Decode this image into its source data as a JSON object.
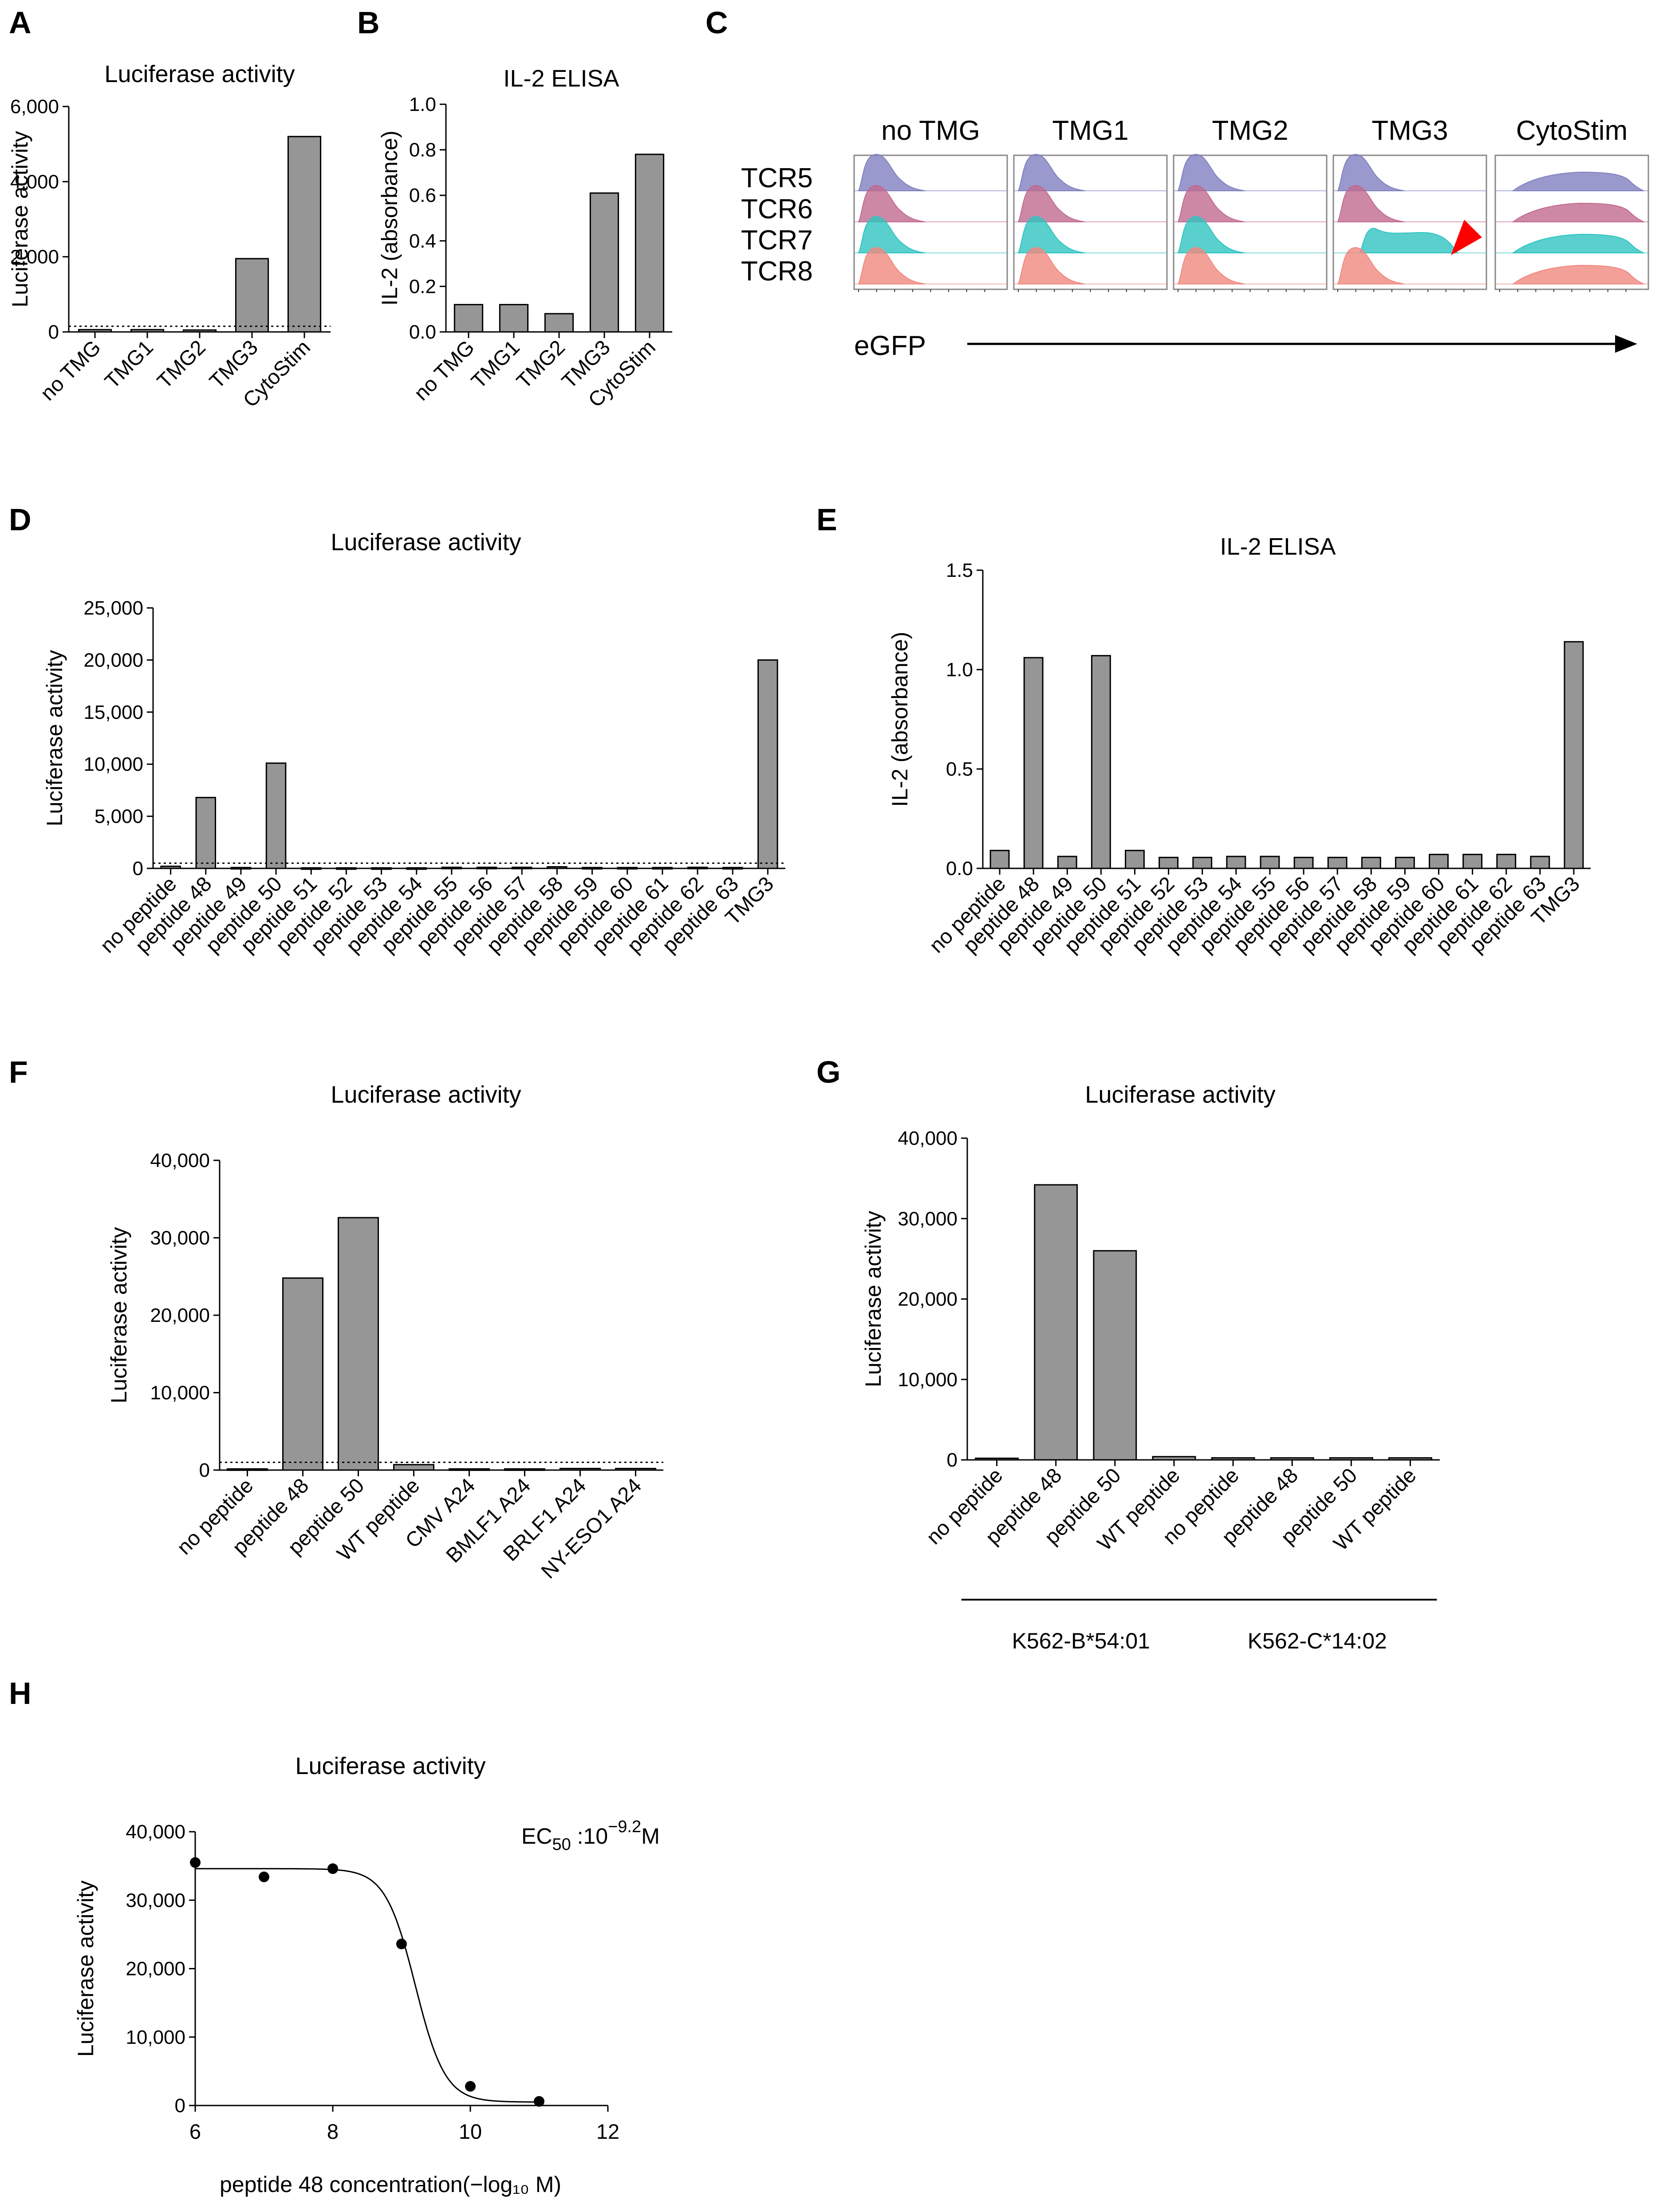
{
  "chart_data": [
    {
      "panel": "A",
      "type": "bar",
      "title": "Luciferase activity",
      "ylabel": "Luciferase activity",
      "xlabel": "",
      "categories": [
        "no TMG",
        "TMG1",
        "TMG2",
        "TMG3",
        "CytoStim"
      ],
      "values": [
        60,
        60,
        50,
        1950,
        5200
      ],
      "ylim": [
        0,
        6000
      ],
      "yticks": [
        0,
        2000,
        4000,
        6000
      ],
      "ytick_labels": [
        "0",
        "2,000",
        "4,000",
        "6,000"
      ],
      "threshold": 150
    },
    {
      "panel": "B",
      "type": "bar",
      "title": "IL-2 ELISA",
      "ylabel": "IL-2 (absorbance)",
      "xlabel": "",
      "categories": [
        "no TMG",
        "TMG1",
        "TMG2",
        "TMG3",
        "CytoStim"
      ],
      "values": [
        0.12,
        0.12,
        0.08,
        0.61,
        0.78
      ],
      "ylim": [
        0,
        1.0
      ],
      "yticks": [
        0,
        0.2,
        0.4,
        0.6,
        0.8,
        1.0
      ],
      "ytick_labels": [
        "0.0",
        "0.2",
        "0.4",
        "0.6",
        "0.8",
        "1.0"
      ]
    },
    {
      "panel": "C",
      "type": "histogram-grid",
      "columns": [
        "no TMG",
        "TMG1",
        "TMG2",
        "TMG3",
        "CytoStim"
      ],
      "rows": [
        "TCR5",
        "TCR6",
        "TCR7",
        "TCR8"
      ],
      "xlabel": "eGFP",
      "row_colors": [
        "#7f7fc0",
        "#c06a90",
        "#2fc4c0",
        "#f08880"
      ],
      "shift": [
        [
          0,
          0,
          0,
          0,
          1
        ],
        [
          0,
          0,
          0,
          0,
          1
        ],
        [
          0,
          0,
          0,
          1,
          1
        ],
        [
          0,
          0,
          0,
          0,
          1
        ]
      ],
      "highlight": {
        "row": "TCR7",
        "column": "TMG3",
        "marker": "red arrowhead"
      }
    },
    {
      "panel": "D",
      "type": "bar",
      "title": "Luciferase activity",
      "ylabel": "Luciferase activity",
      "xlabel": "",
      "categories": [
        "no peptide",
        "peptide 48",
        "peptide 49",
        "peptide 50",
        "peptide 51",
        "peptide 52",
        "peptide 53",
        "peptide 54",
        "peptide 55",
        "peptide 56",
        "peptide 57",
        "peptide 58",
        "peptide 59",
        "peptide 60",
        "peptide 61",
        "peptide 62",
        "peptide 63",
        "TMG3"
      ],
      "values": [
        200,
        6800,
        80,
        10100,
        50,
        50,
        50,
        50,
        100,
        100,
        100,
        150,
        80,
        80,
        80,
        100,
        80,
        20000
      ],
      "ylim": [
        0,
        25000
      ],
      "yticks": [
        0,
        5000,
        10000,
        15000,
        20000,
        25000
      ],
      "ytick_labels": [
        "0",
        "5,000",
        "10,000",
        "15,000",
        "20,000",
        "25,000"
      ],
      "threshold": 500
    },
    {
      "panel": "E",
      "type": "bar",
      "title": "IL-2 ELISA",
      "ylabel": "IL-2 (absorbance)",
      "xlabel": "",
      "categories": [
        "no peptide",
        "peptide 48",
        "peptide 49",
        "peptide 50",
        "peptide 51",
        "peptide 52",
        "peptide 53",
        "peptide 54",
        "peptide 55",
        "peptide 56",
        "peptide 57",
        "peptide 58",
        "peptide 59",
        "peptide 60",
        "peptide 61",
        "peptide 62",
        "peptide 63",
        "TMG3"
      ],
      "values": [
        0.09,
        1.06,
        0.06,
        1.07,
        0.09,
        0.055,
        0.055,
        0.06,
        0.06,
        0.055,
        0.055,
        0.055,
        0.055,
        0.07,
        0.07,
        0.07,
        0.06,
        1.14
      ],
      "ylim": [
        0,
        1.5
      ],
      "yticks": [
        0,
        0.5,
        1.0,
        1.5
      ],
      "ytick_labels": [
        "0.0",
        "0.5",
        "1.0",
        "1.5"
      ]
    },
    {
      "panel": "F",
      "type": "bar",
      "title": "Luciferase activity",
      "ylabel": "Luciferase activity",
      "xlabel": "",
      "categories": [
        "no peptide",
        "peptide 48",
        "peptide 50",
        "WT peptide",
        "CMV A24",
        "BMLF1 A24",
        "BRLF1 A24",
        "NY-ESO1 A24"
      ],
      "values": [
        150,
        24800,
        32600,
        700,
        150,
        150,
        200,
        200
      ],
      "ylim": [
        0,
        40000
      ],
      "yticks": [
        0,
        10000,
        20000,
        30000,
        40000
      ],
      "ytick_labels": [
        "0",
        "10,000",
        "20,000",
        "30,000",
        "40,000"
      ],
      "threshold": 1000
    },
    {
      "panel": "G",
      "type": "bar",
      "title": "Luciferase activity",
      "ylabel": "Luciferase activity",
      "xlabel": "",
      "categories": [
        "no peptide",
        "peptide 48",
        "peptide 50",
        "WT peptide",
        "no peptide",
        "peptide 48",
        "peptide 50",
        "WT peptide"
      ],
      "values": [
        200,
        34200,
        26000,
        400,
        250,
        250,
        250,
        250
      ],
      "ylim": [
        0,
        40000
      ],
      "yticks": [
        0,
        10000,
        20000,
        30000,
        40000
      ],
      "ytick_labels": [
        "0",
        "10,000",
        "20,000",
        "30,000",
        "40,000"
      ],
      "groups": [
        {
          "label": "K562-B*54:01",
          "from": 0,
          "to": 3
        },
        {
          "label": "K562-C*14:02",
          "from": 4,
          "to": 7
        }
      ]
    },
    {
      "panel": "H",
      "type": "scatter",
      "title": "Luciferase activity",
      "ylabel": "Luciferase activity",
      "xlabel": "peptide 48 concentration(−log₁₀ M)",
      "x": [
        6,
        7,
        8,
        9,
        10,
        11
      ],
      "y": [
        35500,
        33400,
        34600,
        23600,
        2800,
        600
      ],
      "xlim": [
        6,
        12
      ],
      "xticks": [
        6,
        8,
        10,
        12
      ],
      "xtick_labels": [
        "6",
        "8",
        "10",
        "12"
      ],
      "ylim": [
        0,
        40000
      ],
      "yticks": [
        0,
        10000,
        20000,
        30000,
        40000
      ],
      "ytick_labels": [
        "0",
        "10,000",
        "20,000",
        "30,000",
        "40,000"
      ],
      "fit": {
        "top": 34600,
        "bottom": 500,
        "logEC50": 9.2,
        "hill": 2.0
      },
      "annotation": {
        "prefix": "EC",
        "sub": "50",
        "mid": " :10",
        "sup": "−9.2",
        "suffix": "M"
      }
    }
  ]
}
